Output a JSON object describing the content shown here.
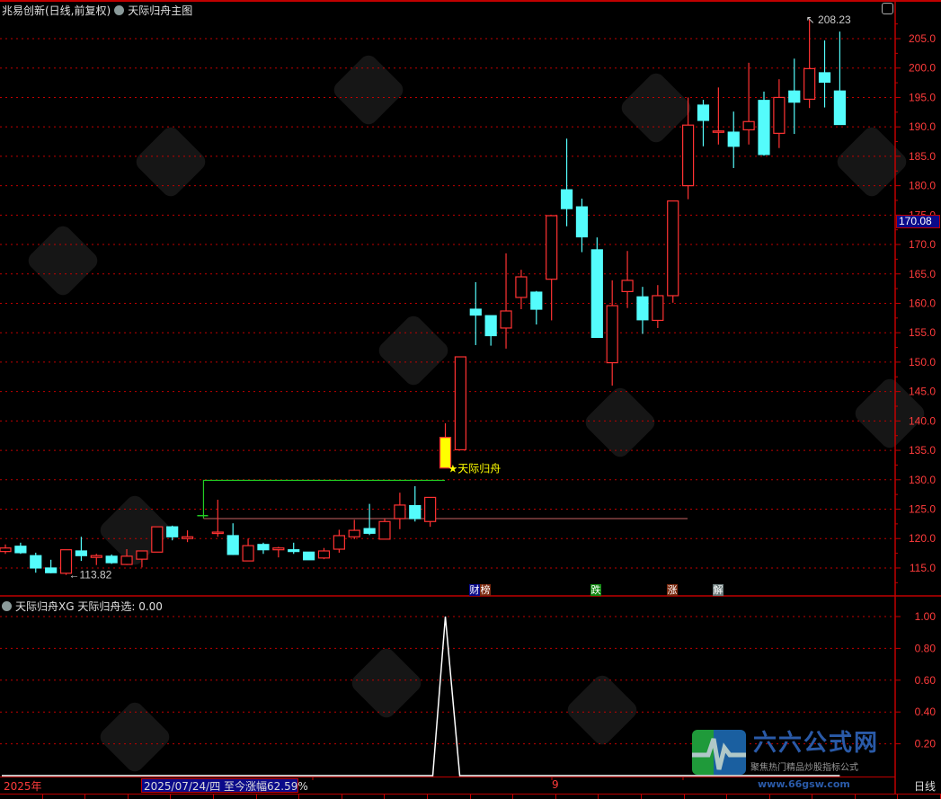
{
  "header": {
    "stock": "兆易创新(日线,前复权)",
    "indicator": "天际归舟主图"
  },
  "lower_panel": {
    "indicator": "天际归舟XG",
    "value_label": "天际归舟选: 0.00"
  },
  "badges": [
    {
      "text": "财",
      "color": "#0a0a8a"
    },
    {
      "text": "榜",
      "color": "#7a2a10"
    },
    {
      "text": "跌",
      "color": "#138a13"
    },
    {
      "text": "涨",
      "color": "#7a2a10"
    },
    {
      "text": "解",
      "color": "#6a7a7a"
    }
  ],
  "date_bar": {
    "year": "2025年",
    "selected": "2025/07/24/四  至今涨幅62.59%",
    "month_mark": "9",
    "period": "日线"
  },
  "logo": {
    "name": "六六公式网",
    "slogan": "聚焦热门精品炒股指标公式",
    "url": "www.66gsw.com"
  },
  "colors": {
    "up": "#ff3232",
    "down": "#54fcfc",
    "signal": "#ffff00",
    "grid": "#c00000",
    "axis_text": "#ff3b3b"
  },
  "chart_data": [
    {
      "type": "candlestick",
      "ylim": [
        111,
        210
      ],
      "yticks": [
        "205.0",
        "200.0",
        "195.0",
        "190.0",
        "185.0",
        "180.0",
        "175.0",
        "170.0",
        "165.0",
        "160.0",
        "155.0",
        "150.0",
        "145.0",
        "140.0",
        "135.0",
        "130.0",
        "125.0",
        "120.0",
        "115.0"
      ],
      "current_price_label": "170.08",
      "low_label": "113.82",
      "high_label": "208.23",
      "signal_label": "★天际归舟",
      "signal_index": 29,
      "ohlc": [
        [
          117.8,
          119.0,
          117.4,
          118.4
        ],
        [
          118.7,
          119.3,
          117.4,
          117.6
        ],
        [
          117.1,
          117.6,
          114.2,
          115.0
        ],
        [
          115.0,
          116.4,
          114.1,
          114.2
        ],
        [
          114.1,
          118.1,
          113.82,
          118.1
        ],
        [
          117.9,
          120.3,
          116.2,
          117.1
        ],
        [
          116.8,
          117.4,
          115.5,
          117.1
        ],
        [
          117.0,
          117.3,
          115.7,
          115.9
        ],
        [
          115.6,
          118.2,
          115.5,
          117.0
        ],
        [
          116.5,
          117.9,
          115.1,
          117.9
        ],
        [
          117.7,
          122.0,
          117.7,
          122.0
        ],
        [
          122.0,
          122.2,
          119.7,
          120.3
        ],
        [
          120.0,
          121.4,
          119.4,
          120.3
        ],
        [
          123.9,
          123.9,
          123.9,
          123.9
        ],
        [
          120.9,
          126.6,
          120.3,
          121.1
        ],
        [
          120.5,
          122.6,
          117.2,
          117.3
        ],
        [
          116.2,
          120.0,
          116.2,
          118.8
        ],
        [
          119.0,
          119.3,
          117.4,
          118.1
        ],
        [
          118.1,
          118.6,
          116.8,
          118.4
        ],
        [
          118.1,
          119.3,
          117.4,
          117.8
        ],
        [
          117.7,
          117.7,
          116.4,
          116.4
        ],
        [
          116.7,
          118.4,
          116.5,
          117.9
        ],
        [
          118.2,
          121.5,
          117.6,
          120.5
        ],
        [
          120.3,
          123.2,
          119.9,
          121.4
        ],
        [
          121.7,
          125.9,
          120.6,
          120.9
        ],
        [
          119.9,
          123.4,
          119.9,
          122.9
        ],
        [
          123.4,
          127.8,
          121.6,
          125.7
        ],
        [
          125.6,
          128.9,
          122.9,
          123.4
        ],
        [
          122.9,
          127.0,
          122.0,
          127.0
        ],
        [
          132.0,
          139.6,
          132.0,
          137.2
        ],
        [
          135.1,
          150.9,
          135.1,
          150.9
        ],
        [
          159.0,
          163.6,
          152.9,
          158.0
        ],
        [
          157.9,
          157.9,
          152.8,
          154.5
        ],
        [
          155.8,
          168.5,
          152.3,
          158.7
        ],
        [
          161.0,
          165.7,
          159.0,
          164.5
        ],
        [
          161.9,
          162.1,
          156.4,
          159.0
        ],
        [
          164.1,
          174.9,
          157.1,
          174.9
        ],
        [
          179.3,
          188.0,
          173.1,
          176.1
        ],
        [
          176.4,
          177.8,
          168.7,
          171.3
        ],
        [
          169.1,
          171.2,
          154.2,
          154.2
        ],
        [
          149.9,
          163.9,
          146.0,
          159.6
        ],
        [
          162.0,
          168.9,
          159.2,
          163.9
        ],
        [
          161.1,
          162.8,
          154.8,
          157.2
        ],
        [
          157.1,
          163.1,
          155.8,
          161.3
        ],
        [
          161.3,
          177.4,
          160.1,
          177.4
        ],
        [
          180.0,
          195.0,
          177.7,
          190.3
        ],
        [
          193.7,
          194.6,
          186.7,
          191.1
        ],
        [
          189.1,
          196.7,
          187.0,
          189.3
        ],
        [
          189.1,
          192.6,
          183.0,
          186.7
        ],
        [
          189.5,
          200.9,
          187.0,
          190.9
        ],
        [
          194.5,
          196.0,
          185.1,
          185.3
        ],
        [
          188.9,
          198.1,
          186.4,
          195.0
        ],
        [
          196.1,
          201.6,
          188.8,
          194.2
        ],
        [
          194.7,
          208.23,
          193.2,
          199.9
        ],
        [
          199.2,
          204.7,
          193.3,
          197.6
        ],
        [
          196.1,
          206.2,
          190.4,
          190.4
        ]
      ],
      "box_levels": {
        "upper": 129.9,
        "lower": 123.4
      }
    },
    {
      "type": "line",
      "series": [
        {
          "name": "天际归舟选",
          "signal_index": 29,
          "signal_value": 1.0,
          "other_value": 0.0
        }
      ],
      "ylim": [
        0,
        1.0
      ],
      "yticks": [
        "1.00",
        "0.80",
        "0.60",
        "0.40",
        "0.20"
      ]
    }
  ]
}
